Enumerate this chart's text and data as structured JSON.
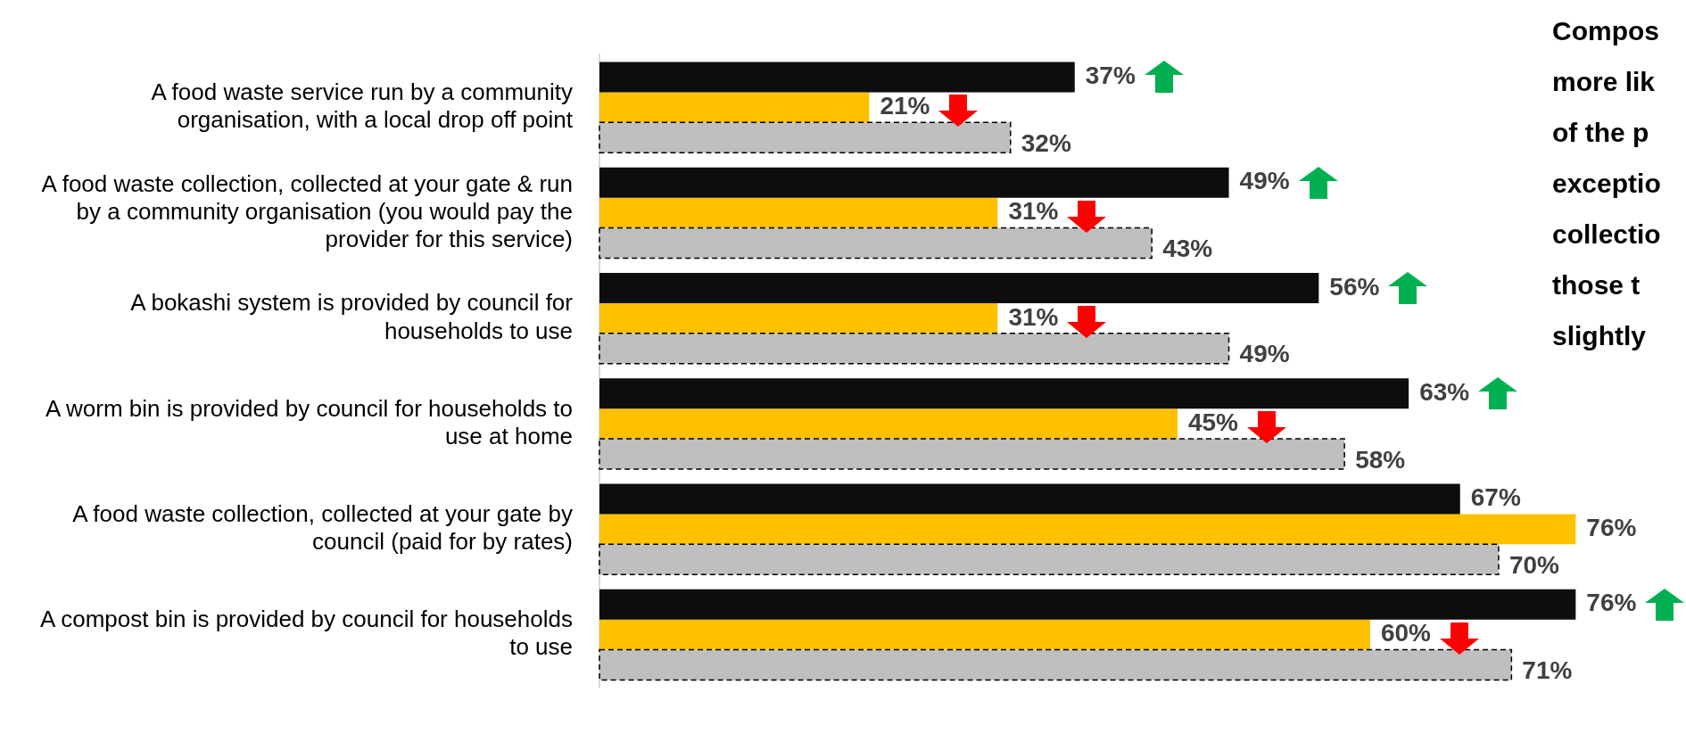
{
  "chart_data": {
    "type": "bar",
    "orientation": "horizontal",
    "legend": false,
    "categories": [
      "A food waste service run by a community organisation, with a local drop off point",
      "A food waste collection, collected at your gate & run by a community organisation (you would pay the provider for this service)",
      "A bokashi system is provided by council for households to use",
      "A worm bin is provided by council for households to use at home",
      "A food waste collection, collected at your gate by council (paid for by rates)",
      "A compost bin is provided by council for households to use"
    ],
    "series": [
      {
        "color": "#0d0d0d",
        "values": [
          37,
          49,
          56,
          63,
          67,
          76
        ],
        "value_labels": [
          "37%",
          "49%",
          "56%",
          "63%",
          "67%",
          "76%"
        ]
      },
      {
        "color": "#ffc000",
        "values": [
          21,
          31,
          31,
          45,
          76,
          60
        ],
        "value_labels": [
          "21%",
          "31%",
          "31%",
          "45%",
          "76%",
          "60%"
        ]
      },
      {
        "color": "#bfbfbf",
        "values": [
          32,
          43,
          49,
          58,
          70,
          71
        ],
        "value_labels": [
          "32%",
          "43%",
          "49%",
          "58%",
          "70%",
          "71%"
        ]
      }
    ],
    "annotations": [
      "Compos\nmore lik\nof the p\nexceptio\ncollectio\nthose t\nslightly"
    ]
  }
}
